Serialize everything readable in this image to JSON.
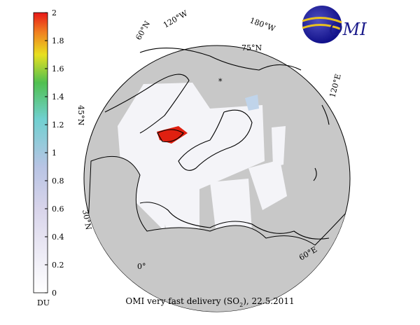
{
  "colorbar": {
    "lim": [
      0,
      2
    ],
    "ticks": [
      0,
      0.2,
      0.4,
      0.6,
      0.8,
      1,
      1.2,
      1.4,
      1.6,
      1.8,
      2
    ],
    "unit": "DU"
  },
  "graticule_labels": [
    "60°N",
    "120°W",
    "180°W",
    "75°N",
    "120°E",
    "45°N",
    "30°N",
    "0°",
    "60°E"
  ],
  "logo": "OMI",
  "title": {
    "before": "OMI very fast delivery (SO",
    "subscript": "2",
    "after": "), 22.5.2011"
  }
}
